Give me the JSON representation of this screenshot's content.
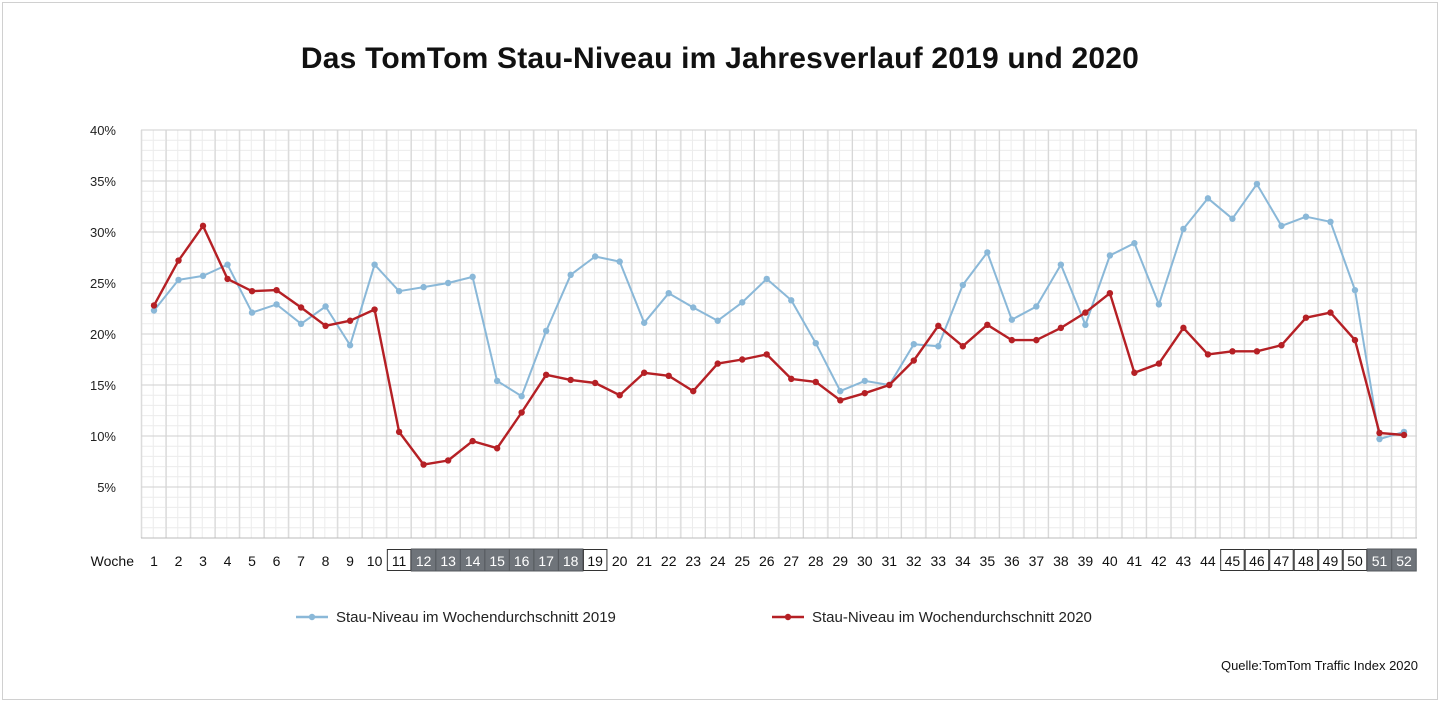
{
  "chart_data": {
    "type": "line",
    "title": "Das TomTom Stau-Niveau im Jahresverlauf 2019 und 2020",
    "xlabel": "Woche",
    "ylabel": "",
    "ylim": [
      0,
      40
    ],
    "yticks": [
      "40%",
      "35%",
      "30%",
      "25%",
      "20%",
      "15%",
      "10%",
      "5%"
    ],
    "ytick_values": [
      40,
      35,
      30,
      25,
      20,
      15,
      10,
      5
    ],
    "grid": true,
    "legend_position": "bottom",
    "categories": [
      "1",
      "2",
      "3",
      "4",
      "5",
      "6",
      "7",
      "8",
      "9",
      "10",
      "11",
      "12",
      "13",
      "14",
      "15",
      "16",
      "17",
      "18",
      "19",
      "20",
      "21",
      "22",
      "23",
      "24",
      "25",
      "26",
      "27",
      "28",
      "29",
      "30",
      "31",
      "32",
      "33",
      "34",
      "35",
      "36",
      "37",
      "38",
      "39",
      "40",
      "41",
      "42",
      "43",
      "44",
      "45",
      "46",
      "47",
      "48",
      "49",
      "50",
      "51",
      "52"
    ],
    "series": [
      {
        "name": "Stau-Niveau im Wochendurchschnitt 2019",
        "color": "#8ab8d8",
        "values": [
          22.3,
          25.3,
          25.7,
          26.8,
          22.1,
          22.9,
          21.0,
          22.7,
          18.9,
          26.8,
          24.2,
          24.6,
          25.0,
          25.6,
          15.4,
          13.9,
          20.3,
          25.8,
          27.6,
          27.1,
          21.1,
          24.0,
          22.6,
          21.3,
          23.1,
          25.4,
          23.3,
          19.1,
          14.4,
          15.4,
          15.0,
          19.0,
          18.8,
          24.8,
          28.0,
          21.4,
          22.7,
          26.8,
          20.9,
          27.7,
          28.9,
          22.9,
          30.3,
          33.3,
          31.3,
          34.7,
          30.6,
          31.5,
          31.0,
          24.3,
          9.7,
          10.4
        ]
      },
      {
        "name": "Stau-Niveau im Wochendurchschnitt 2020",
        "color": "#b52025",
        "values": [
          22.8,
          27.2,
          30.6,
          25.4,
          24.2,
          24.3,
          22.6,
          20.8,
          21.3,
          22.4,
          10.4,
          7.2,
          7.6,
          9.5,
          8.8,
          12.3,
          16.0,
          15.5,
          15.2,
          14.0,
          16.2,
          15.9,
          14.4,
          17.1,
          17.5,
          18.0,
          15.6,
          15.3,
          13.5,
          14.2,
          15.0,
          17.4,
          20.8,
          18.8,
          20.9,
          19.4,
          19.4,
          20.6,
          22.1,
          24.0,
          16.2,
          17.1,
          20.6,
          18.0,
          18.3,
          18.3,
          18.9,
          21.6,
          22.1,
          19.4,
          10.3,
          10.1
        ]
      }
    ],
    "highlighted_weeks": {
      "outlined": [
        "11",
        "19",
        "45",
        "46",
        "47",
        "48",
        "49",
        "50"
      ],
      "shaded": [
        "12",
        "13",
        "14",
        "15",
        "16",
        "17",
        "18",
        "51",
        "52"
      ]
    }
  },
  "source": "Quelle:TomTom Traffic Index 2020"
}
